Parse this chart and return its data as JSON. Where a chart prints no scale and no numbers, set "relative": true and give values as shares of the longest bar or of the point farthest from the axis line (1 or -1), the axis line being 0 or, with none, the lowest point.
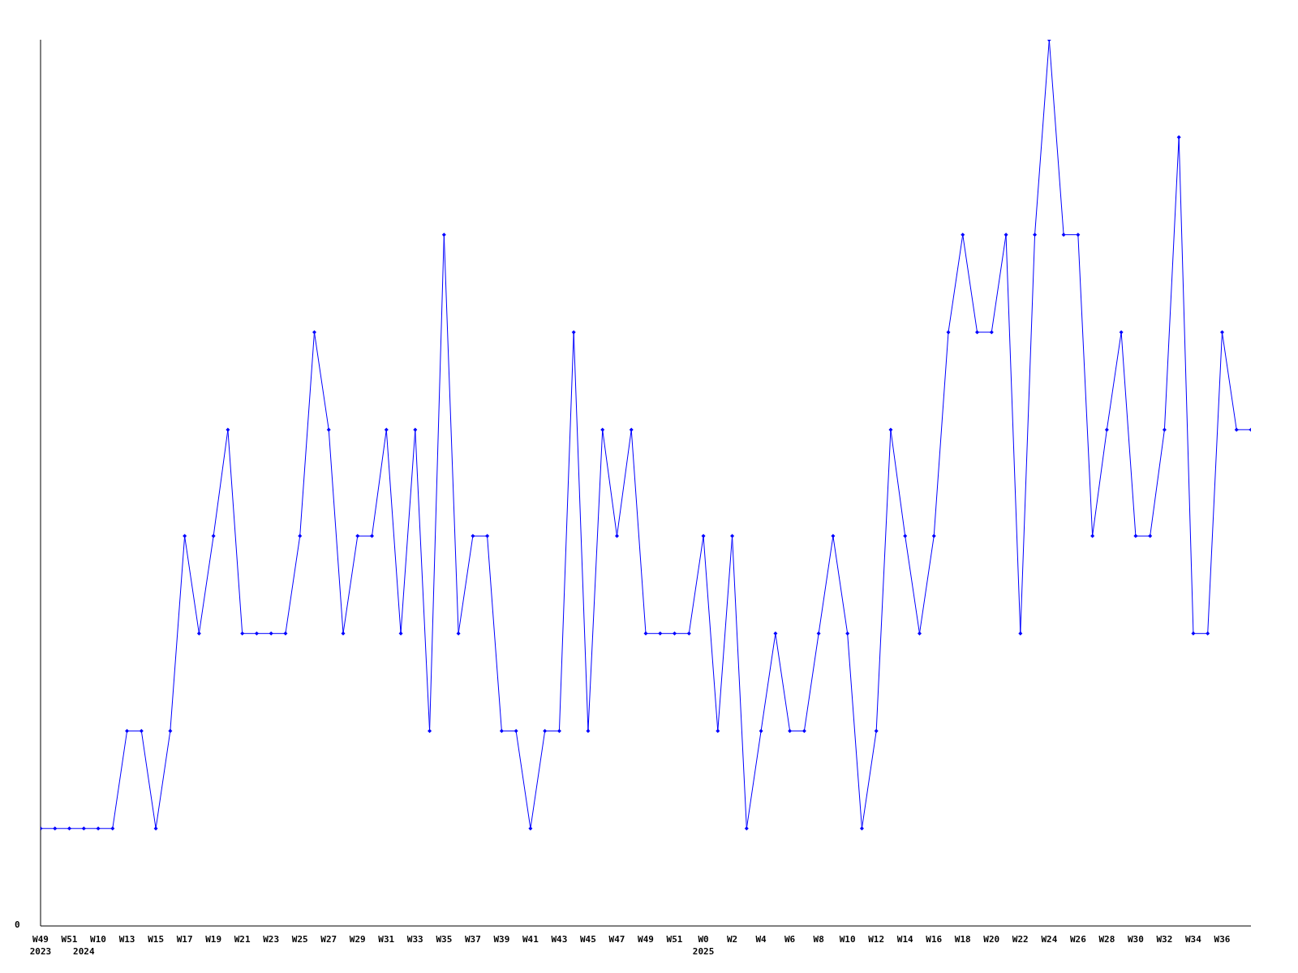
{
  "chart_data": {
    "type": "line",
    "relative": true,
    "marker": "diamond",
    "line_style": "solid",
    "annotations": [
      "0"
    ],
    "categories": [
      "W49\n2023",
      null,
      "W51",
      "\n2024",
      "W10",
      null,
      "W13",
      null,
      "W15",
      null,
      "W17",
      null,
      "W19",
      null,
      "W21",
      null,
      "W23",
      null,
      "W25",
      null,
      "W27",
      null,
      "W29",
      null,
      "W31",
      null,
      "W33",
      null,
      "W35",
      null,
      "W37",
      null,
      "W39",
      null,
      "W41",
      null,
      "W43",
      null,
      "W45",
      null,
      "W47",
      null,
      "W49",
      null,
      "W51",
      null,
      "W0\n2025",
      null,
      "W2",
      null,
      "W4",
      null,
      "W6",
      null,
      "W8",
      null,
      "W10",
      null,
      "W12",
      null,
      "W14",
      null,
      "W16",
      null,
      "W18",
      null,
      "W20",
      null,
      "W22",
      null,
      "W24",
      null,
      "W26",
      null,
      "W28",
      null,
      "W30",
      null,
      "W32",
      null,
      "W34",
      null,
      "W36",
      null,
      null
    ],
    "series": [
      {
        "color": "#0000ff",
        "values": [
          0.11,
          0.11,
          0.11,
          0.11,
          0.11,
          0.11,
          0.22,
          0.22,
          0.11,
          0.22,
          0.44,
          0.33,
          0.44,
          0.56,
          0.33,
          0.33,
          0.33,
          0.33,
          0.44,
          0.67,
          0.56,
          0.33,
          0.44,
          0.44,
          0.56,
          0.33,
          0.56,
          0.22,
          0.78,
          0.33,
          0.44,
          0.44,
          0.22,
          0.22,
          0.11,
          0.22,
          0.22,
          0.67,
          0.22,
          0.56,
          0.44,
          0.56,
          0.33,
          0.33,
          0.33,
          0.33,
          0.44,
          0.22,
          0.44,
          0.11,
          0.22,
          0.33,
          0.22,
          0.22,
          0.33,
          0.44,
          0.33,
          0.11,
          0.22,
          0.56,
          0.44,
          0.33,
          0.44,
          0.67,
          0.78,
          0.67,
          0.67,
          0.78,
          0.33,
          0.78,
          1,
          0.78,
          0.78,
          0.44,
          0.56,
          0.67,
          0.44,
          0.44,
          0.56,
          0.89,
          0.33,
          0.33,
          0.67,
          0.56,
          0.56
        ]
      }
    ]
  }
}
